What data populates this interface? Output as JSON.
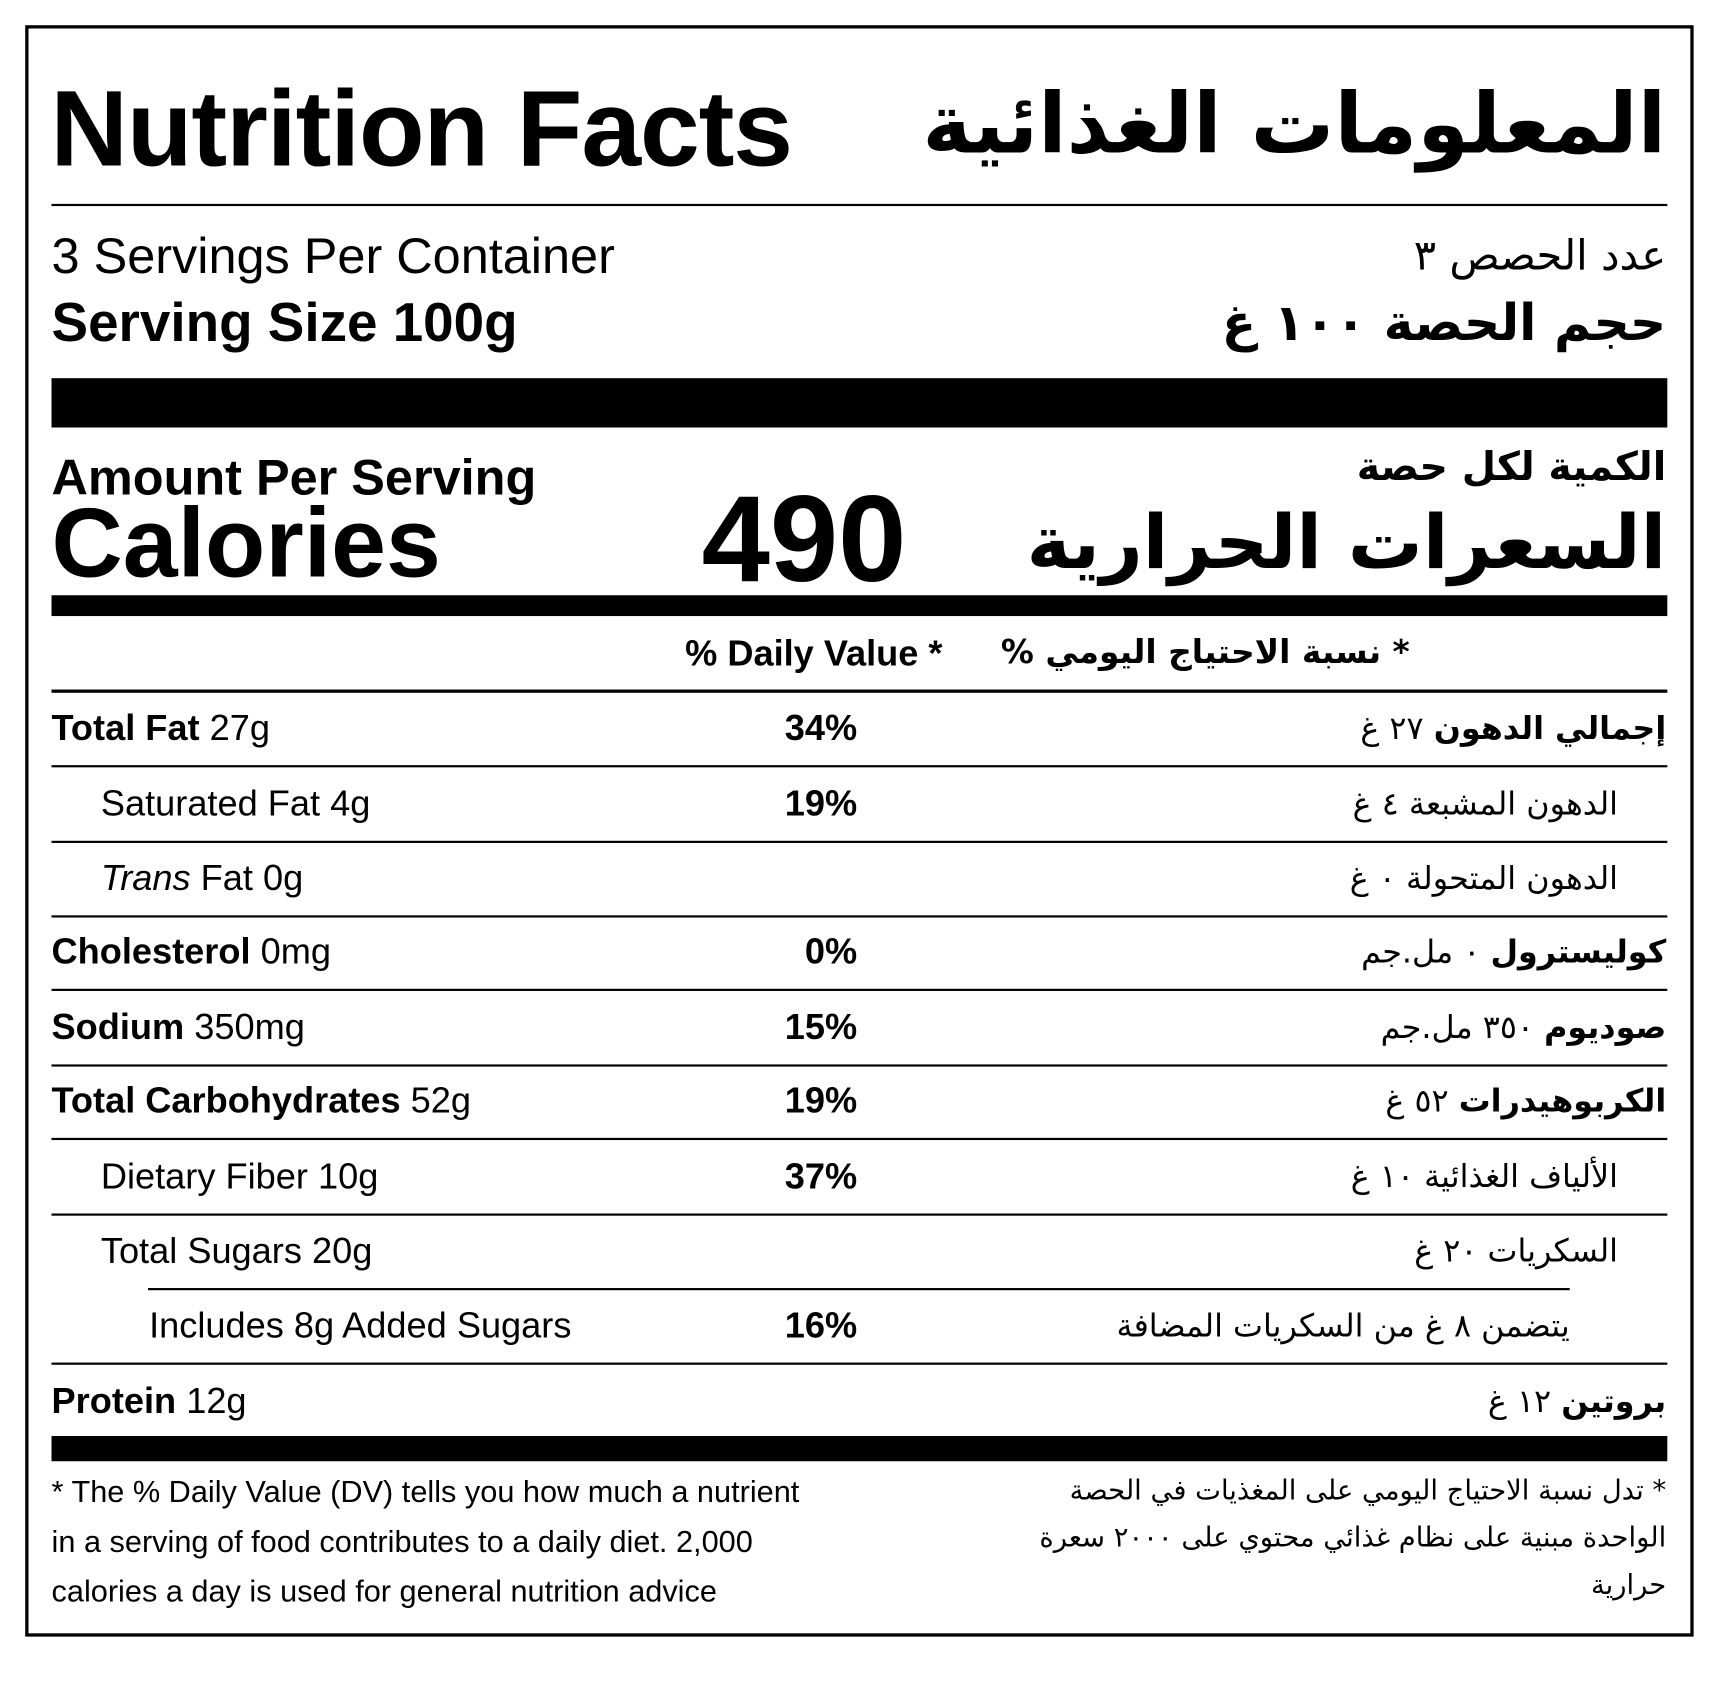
{
  "title": {
    "en": "Nutrition Facts",
    "ar": "المعلومات الغذائية"
  },
  "servings": {
    "per_container_en": "3 Servings Per Container",
    "per_container_ar": "عدد الحصص ٣",
    "size_en": "Serving Size 100g",
    "size_ar": "حجم الحصة ١٠٠ غ"
  },
  "calories": {
    "amount_en": "Amount Per Serving",
    "amount_ar": "الكمية لكل حصة",
    "label_en": "Calories",
    "label_ar": "السعرات الحرارية",
    "value": "490"
  },
  "daily_value_header": {
    "en": "% Daily Value *",
    "ar": "* نسبة الاحتياج اليومي %"
  },
  "rows": [
    {
      "en_bold": "Total Fat",
      "en_italic": "",
      "en_rest": " 27g",
      "pct": "34%",
      "ar_bold": "إجمالي الدهون",
      "ar_rest": " ٢٧ غ",
      "level": 0
    },
    {
      "en_bold": "",
      "en_italic": "",
      "en_rest": "Saturated Fat 4g",
      "pct": "19%",
      "ar_bold": "",
      "ar_rest": "الدهون المشبعة ٤ غ",
      "level": 1
    },
    {
      "en_bold": "",
      "en_italic": "Trans",
      "en_rest": " Fat 0g",
      "pct": "",
      "ar_bold": "",
      "ar_rest": "الدهون المتحولة ٠ غ",
      "level": 1
    },
    {
      "en_bold": "Cholesterol",
      "en_italic": "",
      "en_rest": " 0mg",
      "pct": "0%",
      "ar_bold": "كوليسترول",
      "ar_rest": " ٠ مل.جم",
      "level": 0
    },
    {
      "en_bold": "Sodium",
      "en_italic": "",
      "en_rest": " 350mg",
      "pct": "15%",
      "ar_bold": "صوديوم",
      "ar_rest": " ٣٥٠ مل.جم",
      "level": 0
    },
    {
      "en_bold": "Total Carbohydrates",
      "en_italic": "",
      "en_rest": " 52g",
      "pct": "19%",
      "ar_bold": "الكربوهيدرات",
      "ar_rest": " ٥٢ غ",
      "level": 0
    },
    {
      "en_bold": "",
      "en_italic": "",
      "en_rest": "Dietary Fiber 10g",
      "pct": "37%",
      "ar_bold": "",
      "ar_rest": "الألياف الغذائية ١٠ غ",
      "level": 1
    },
    {
      "en_bold": "",
      "en_italic": "",
      "en_rest": "Total Sugars 20g",
      "pct": "",
      "ar_bold": "",
      "ar_rest": "السكريات ٢٠ غ",
      "level": 1
    },
    {
      "en_bold": "",
      "en_italic": "",
      "en_rest": "Includes 8g Added Sugars",
      "pct": "16%",
      "ar_bold": "",
      "ar_rest": "يتضمن ٨ غ من السكريات المضافة",
      "level": 2
    },
    {
      "en_bold": "Protein",
      "en_italic": "",
      "en_rest": " 12g",
      "pct": "",
      "ar_bold": "بروتين",
      "ar_rest": " ١٢ غ",
      "level": 0
    }
  ],
  "footnote": {
    "en": [
      "* The % Daily Value (DV) tells you how much a nutrient",
      "in a serving of food contributes to a daily diet. 2,000",
      "calories a day is used for general nutrition advice"
    ],
    "ar": [
      "* تدل نسبة الاحتياج اليومي على المغذيات في الحصة",
      "الواحدة مبنية على نظام غذائي محتوي على ٢٠٠٠ سعرة",
      "حرارية"
    ]
  }
}
